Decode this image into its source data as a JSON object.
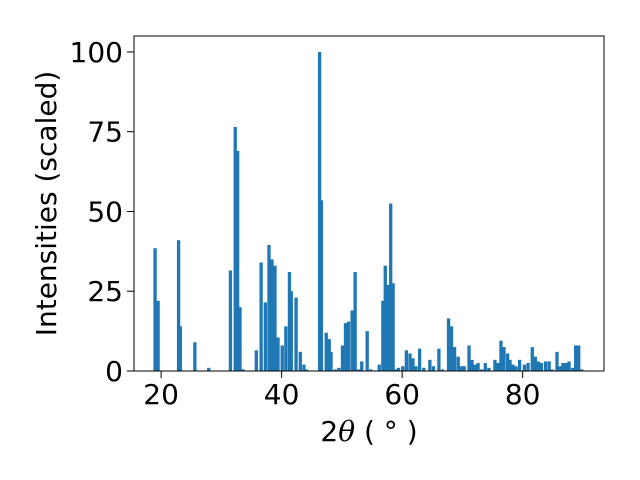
{
  "chart_data": {
    "type": "bar",
    "xlabel_prefix": "2",
    "xlabel_symbol": "θ",
    "xlabel_suffix": " ( ° )",
    "ylabel": "Intensities (scaled)",
    "xlim": [
      15.5,
      93.5
    ],
    "ylim": [
      0,
      105
    ],
    "xticks": [
      20,
      40,
      60,
      80
    ],
    "xtick_labels": [
      "20",
      "40",
      "60",
      "80"
    ],
    "yticks": [
      0,
      25,
      50,
      75,
      100
    ],
    "ytick_labels": [
      "0",
      "25",
      "50",
      "75",
      "100"
    ],
    "bar_color": "#1f77b4",
    "bar_width": 0.55,
    "grid": false,
    "legend": "none",
    "x": [
      19.0,
      19.5,
      22.9,
      23.2,
      25.6,
      27.9,
      31.5,
      32.3,
      32.7,
      33.1,
      33.6,
      35.8,
      36.6,
      37.3,
      37.9,
      38.4,
      38.9,
      39.4,
      40.1,
      40.7,
      41.3,
      41.6,
      42.4,
      43.1,
      43.7,
      44.1,
      46.3,
      46.6,
      47.4,
      47.9,
      48.2,
      48.9,
      49.5,
      50.1,
      50.6,
      51.1,
      51.7,
      52.2,
      52.8,
      53.3,
      54.2,
      54.8,
      56.2,
      56.8,
      57.2,
      57.6,
      58.1,
      58.5,
      58.9,
      59.4,
      60.1,
      60.7,
      61.3,
      61.8,
      62.3,
      62.9,
      63.6,
      64.6,
      65.2,
      66.1,
      66.7,
      67.7,
      68.2,
      68.7,
      69.3,
      69.8,
      70.3,
      71.1,
      71.6,
      72.1,
      72.6,
      73.2,
      73.8,
      74.4,
      75.4,
      75.9,
      76.4,
      76.9,
      77.5,
      77.9,
      78.4,
      78.9,
      79.5,
      80.3,
      80.9,
      81.6,
      82.1,
      82.6,
      83.1,
      83.8,
      84.4,
      84.9,
      85.7,
      86.2,
      86.7,
      87.2,
      87.7,
      88.3,
      88.8,
      89.3,
      89.8
    ],
    "values": [
      38.5,
      22,
      41,
      14,
      9,
      1,
      31.5,
      76.5,
      69,
      20,
      0.5,
      6.5,
      34,
      21.5,
      39.5,
      35,
      33,
      10.5,
      8,
      14,
      31,
      25,
      23,
      6,
      2,
      0.5,
      100,
      53.5,
      12,
      10,
      6,
      0.5,
      1,
      8,
      15,
      15.5,
      19,
      31,
      0.5,
      3,
      12.5,
      0.5,
      2,
      22,
      33,
      27,
      52.5,
      27.5,
      0.5,
      1,
      1.5,
      6.5,
      5.5,
      4,
      1.5,
      7,
      1,
      3.5,
      1.5,
      7,
      0.5,
      16.5,
      14,
      7.5,
      4.5,
      1.5,
      1.5,
      8,
      3.5,
      2,
      2.5,
      0.5,
      2.5,
      1,
      3.5,
      2.5,
      9.5,
      7.5,
      5.5,
      3.5,
      2,
      1.5,
      3.5,
      2,
      2.5,
      7.5,
      4.5,
      3,
      2.5,
      3,
      3,
      0.5,
      6,
      1.5,
      2.5,
      2.5,
      3,
      1,
      8,
      8,
      0.5
    ]
  }
}
